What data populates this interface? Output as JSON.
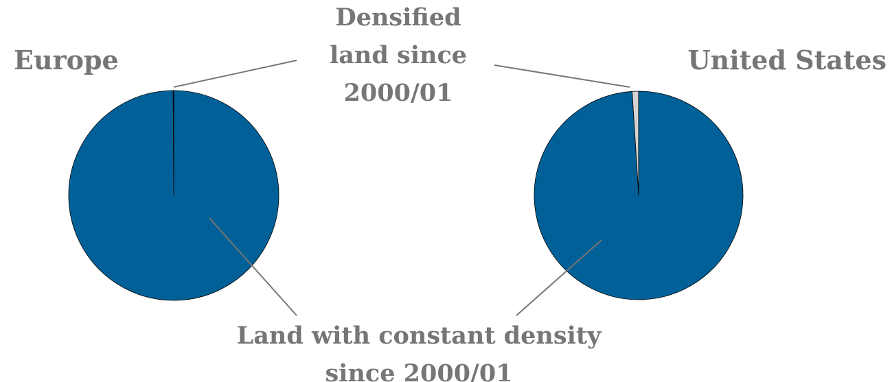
{
  "chart_data": {
    "type": "pie",
    "categories": [
      "Densified land since 2000/01",
      "Land with constant density since 2000/01"
    ],
    "colors": [
      "#d3d3d3",
      "#006097"
    ],
    "series": [
      {
        "name": "Europe",
        "values": [
          0.1,
          99.9
        ]
      },
      {
        "name": "United States",
        "values": [
          1,
          99
        ]
      }
    ]
  }
}
